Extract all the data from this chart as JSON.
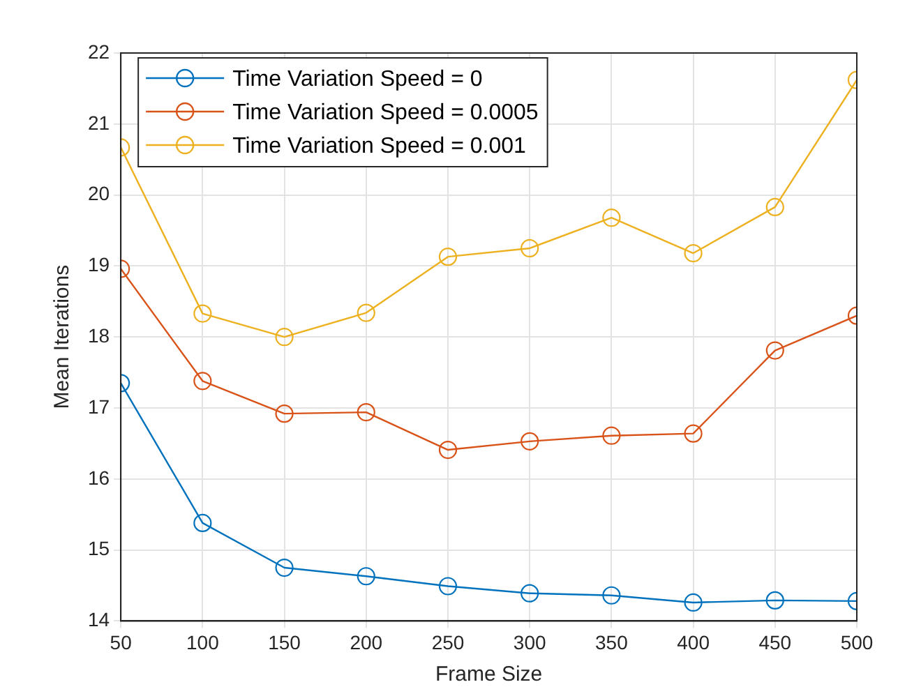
{
  "chart_data": {
    "type": "line",
    "xlabel": "Frame Size",
    "ylabel": "Mean Iterations",
    "x": [
      50,
      100,
      150,
      200,
      250,
      300,
      350,
      400,
      450,
      500
    ],
    "xlim": [
      50,
      500
    ],
    "xticks": [
      50,
      100,
      150,
      200,
      250,
      300,
      350,
      400,
      450,
      500
    ],
    "ylim": [
      14,
      22
    ],
    "yticks": [
      14,
      15,
      16,
      17,
      18,
      19,
      20,
      21,
      22
    ],
    "grid": true,
    "legend": "top left",
    "marker": "circle",
    "line_style": "solid",
    "series": [
      {
        "name": "Time Variation Speed = 0",
        "color": "#0072bd",
        "values": [
          17.35,
          15.38,
          14.75,
          14.63,
          14.49,
          14.39,
          14.36,
          14.26,
          14.29,
          14.28
        ]
      },
      {
        "name": "Time Variation Speed = 0.0005",
        "color": "#d95319",
        "values": [
          18.96,
          17.38,
          16.92,
          16.94,
          16.41,
          16.53,
          16.61,
          16.64,
          17.81,
          18.3
        ]
      },
      {
        "name": "Time Variation Speed = 0.001",
        "color": "#edb120",
        "values": [
          20.67,
          18.33,
          18.0,
          18.34,
          19.13,
          19.25,
          19.68,
          19.18,
          19.83,
          21.62
        ]
      }
    ]
  }
}
